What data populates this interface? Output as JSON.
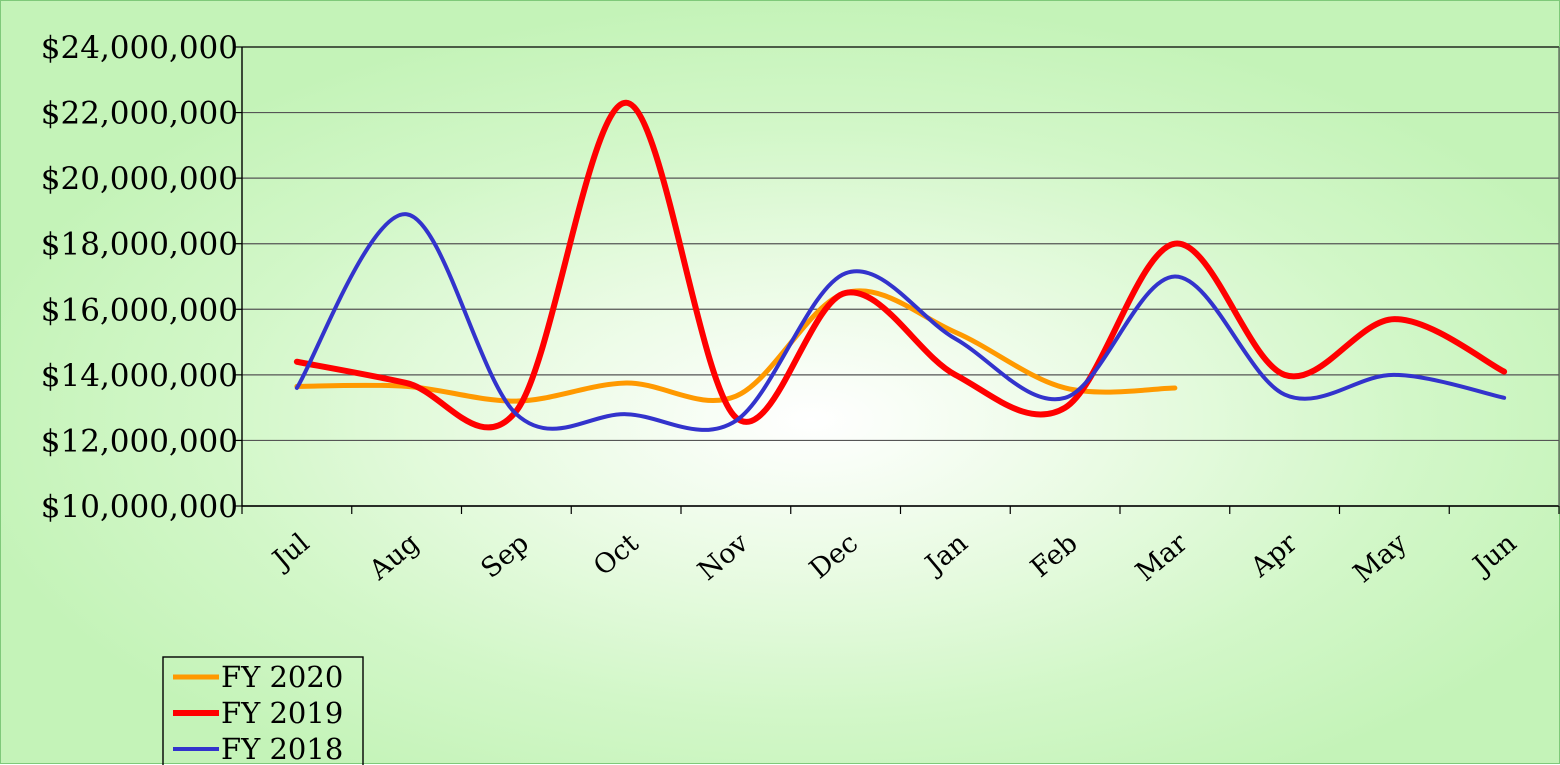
{
  "chart_data": {
    "type": "line",
    "title": "",
    "xlabel": "",
    "ylabel": "",
    "categories": [
      "Jul",
      "Aug",
      "Sep",
      "Oct",
      "Nov",
      "Dec",
      "Jan",
      "Feb",
      "Mar",
      "Apr",
      "May",
      "Jun"
    ],
    "ylim": [
      10000000,
      24000000
    ],
    "yticks": [
      10000000,
      12000000,
      14000000,
      16000000,
      18000000,
      20000000,
      22000000,
      24000000
    ],
    "ytick_labels": [
      "$10,000,000",
      "$12,000,000",
      "$14,000,000",
      "$16,000,000",
      "$18,000,000",
      "$20,000,000",
      "$22,000,000",
      "$24,000,000"
    ],
    "grid": true,
    "smooth": true,
    "legend_position": "bottom-left",
    "series": [
      {
        "name": "FY 2020",
        "color": "#ff9900",
        "width": 5,
        "values": [
          13650000,
          13650000,
          13200000,
          13750000,
          13350000,
          16500000,
          15300000,
          13600000,
          13600000,
          null,
          null,
          null
        ]
      },
      {
        "name": "FY 2019",
        "color": "#ff0000",
        "width": 6,
        "values": [
          14400000,
          13750000,
          12900000,
          22300000,
          12700000,
          16500000,
          14000000,
          13000000,
          18000000,
          14000000,
          15700000,
          14100000
        ]
      },
      {
        "name": "FY 2018",
        "color": "#3333cc",
        "width": 4,
        "values": [
          13600000,
          18900000,
          12800000,
          12800000,
          12600000,
          17100000,
          15100000,
          13300000,
          17000000,
          13400000,
          14000000,
          13300000
        ]
      }
    ]
  }
}
